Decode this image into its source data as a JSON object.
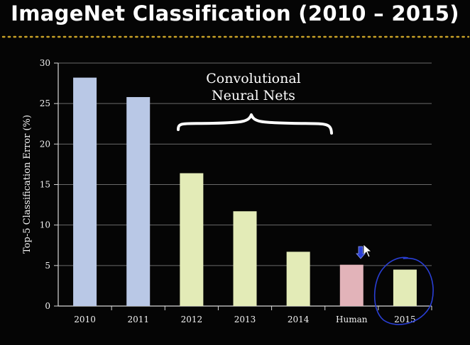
{
  "title": "ImageNet Classification (2010 – 2015)",
  "chart_data": {
    "type": "bar",
    "title": "ImageNet Classification (2010 – 2015)",
    "categories": [
      "2010",
      "2011",
      "2012",
      "2013",
      "2014",
      "Human",
      "2015"
    ],
    "values": [
      28.2,
      25.8,
      16.4,
      11.7,
      6.7,
      5.1,
      4.5
    ],
    "bar_colors": [
      "#b9c8e6",
      "#b9c8e6",
      "#e3ebb7",
      "#e3ebb7",
      "#e3ebb7",
      "#e2b3b9",
      "#e3ebb7"
    ],
    "ylabel": "Top-5 Classification Error (%)",
    "xlabel": "",
    "ylim": [
      0,
      30
    ],
    "yticks": [
      0,
      5,
      10,
      15,
      20,
      25,
      30
    ],
    "grid": true,
    "annotation": {
      "lines": [
        "Convolutional",
        "Neural Nets"
      ],
      "spans_categories": [
        "2012",
        "2014"
      ]
    },
    "highlight_category": "2015",
    "highlight_color": "#2a3fd6"
  }
}
